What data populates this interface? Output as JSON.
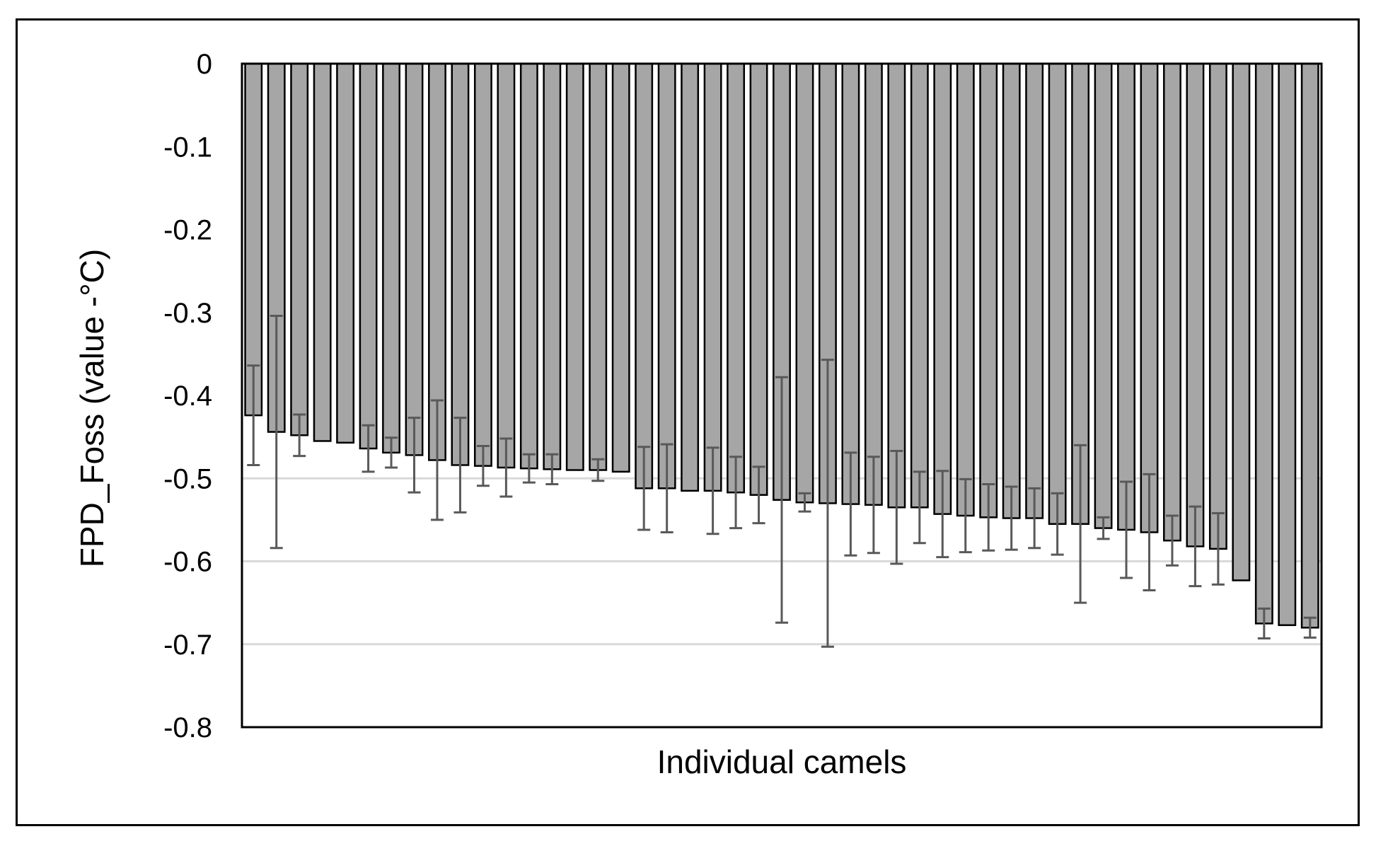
{
  "chart_data": {
    "type": "bar",
    "title": "",
    "xlabel": "Individual camels",
    "ylabel": "FPD_Foss (value -°C)",
    "ylim": [
      -0.8,
      0
    ],
    "yticks": [
      0,
      -0.1,
      -0.2,
      -0.3,
      -0.4,
      -0.5,
      -0.6,
      -0.7,
      -0.8
    ],
    "ytick_labels": [
      "0",
      "-0.1",
      "-0.2",
      "-0.3",
      "-0.4",
      "-0.5",
      "-0.6",
      "-0.7",
      "-0.8"
    ],
    "gridlines": [
      -0.5,
      -0.6,
      -0.7
    ],
    "bar_color": "#a6a6a6",
    "bar_edge_color": "#000000",
    "errorbar_color": "#595959",
    "grid_color": "#d9d9d9",
    "series": [
      {
        "values": [
          -0.424,
          -0.444,
          -0.448,
          -0.455,
          -0.457,
          -0.464,
          -0.469,
          -0.472,
          -0.478,
          -0.484,
          -0.485,
          -0.487,
          -0.488,
          -0.489,
          -0.49,
          -0.49,
          -0.492,
          -0.512,
          -0.512,
          -0.515,
          -0.515,
          -0.517,
          -0.52,
          -0.526,
          -0.529,
          -0.53,
          -0.531,
          -0.532,
          -0.535,
          -0.535,
          -0.543,
          -0.545,
          -0.547,
          -0.548,
          -0.548,
          -0.555,
          -0.555,
          -0.56,
          -0.562,
          -0.565,
          -0.575,
          -0.582,
          -0.585,
          -0.623,
          -0.675,
          -0.677,
          -0.68
        ],
        "errors": [
          0.06,
          0.14,
          0.025,
          0,
          0,
          0.028,
          0.018,
          0.045,
          0.072,
          0.057,
          0.024,
          0.035,
          0.017,
          0.018,
          0,
          0.013,
          0,
          0.05,
          0.053,
          0,
          0.052,
          0.043,
          0.034,
          0.148,
          0.011,
          0.173,
          0.062,
          0.058,
          0.068,
          0.043,
          0.052,
          0.044,
          0.04,
          0.038,
          0.036,
          0.037,
          0.095,
          0.013,
          0.058,
          0.07,
          0.03,
          0.048,
          0.043,
          0,
          0.018,
          0,
          0.012
        ]
      }
    ]
  }
}
